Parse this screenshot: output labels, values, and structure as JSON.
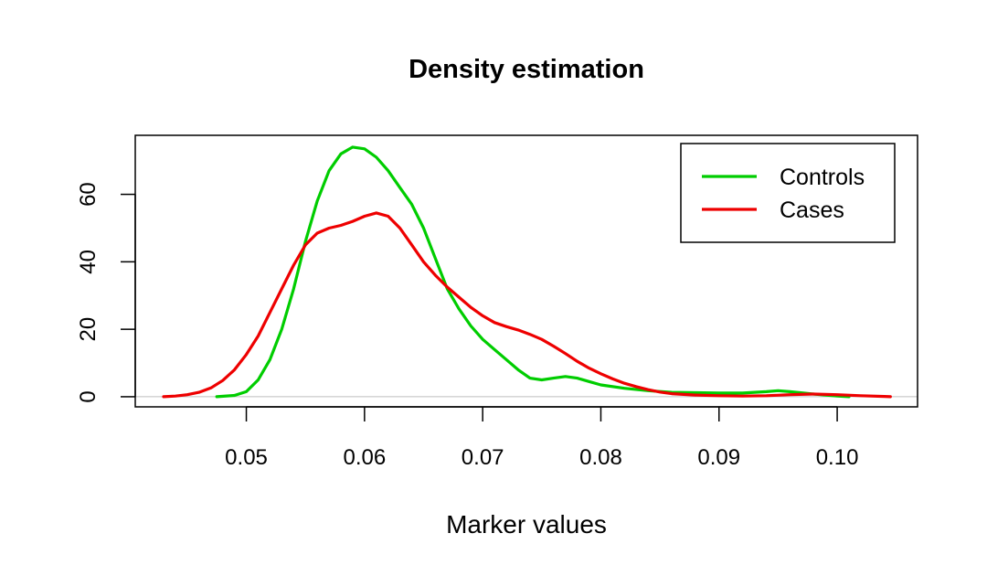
{
  "chart_data": {
    "type": "line",
    "title": "Density estimation",
    "xlabel": "Marker values",
    "ylabel": "",
    "xlim": [
      0.0406,
      0.1068
    ],
    "ylim": [
      -3,
      77.5
    ],
    "x_ticks": [
      0.05,
      0.06,
      0.07,
      0.08,
      0.09,
      0.1
    ],
    "x_tick_labels": [
      "0.05",
      "0.06",
      "0.07",
      "0.08",
      "0.09",
      "0.10"
    ],
    "y_ticks": [
      0,
      20,
      40,
      60
    ],
    "y_tick_labels": [
      "0",
      "20",
      "40",
      "60"
    ],
    "zero_line": true,
    "grid": false,
    "legend": {
      "position": "top-right"
    },
    "series": [
      {
        "name": "Controls",
        "color": "#00cd00",
        "points": [
          [
            0.0475,
            0
          ],
          [
            0.049,
            0.4
          ],
          [
            0.05,
            1.5
          ],
          [
            0.051,
            5
          ],
          [
            0.052,
            11
          ],
          [
            0.053,
            20
          ],
          [
            0.054,
            32
          ],
          [
            0.055,
            46
          ],
          [
            0.056,
            58
          ],
          [
            0.057,
            67
          ],
          [
            0.058,
            72
          ],
          [
            0.059,
            74
          ],
          [
            0.06,
            73.5
          ],
          [
            0.061,
            71
          ],
          [
            0.062,
            67
          ],
          [
            0.063,
            62
          ],
          [
            0.064,
            57
          ],
          [
            0.065,
            50
          ],
          [
            0.066,
            41
          ],
          [
            0.067,
            32
          ],
          [
            0.068,
            26
          ],
          [
            0.069,
            21
          ],
          [
            0.07,
            17
          ],
          [
            0.071,
            14
          ],
          [
            0.072,
            11
          ],
          [
            0.073,
            8
          ],
          [
            0.074,
            5.5
          ],
          [
            0.075,
            5
          ],
          [
            0.076,
            5.5
          ],
          [
            0.077,
            6
          ],
          [
            0.078,
            5.5
          ],
          [
            0.079,
            4.5
          ],
          [
            0.08,
            3.5
          ],
          [
            0.082,
            2.5
          ],
          [
            0.084,
            1.8
          ],
          [
            0.086,
            1.3
          ],
          [
            0.088,
            1.2
          ],
          [
            0.09,
            1.1
          ],
          [
            0.092,
            1.1
          ],
          [
            0.094,
            1.5
          ],
          [
            0.095,
            1.8
          ],
          [
            0.096,
            1.5
          ],
          [
            0.098,
            0.8
          ],
          [
            0.1,
            0.2
          ],
          [
            0.101,
            0
          ]
        ]
      },
      {
        "name": "Cases",
        "color": "#ee0000",
        "points": [
          [
            0.043,
            0
          ],
          [
            0.044,
            0.2
          ],
          [
            0.045,
            0.6
          ],
          [
            0.046,
            1.3
          ],
          [
            0.047,
            2.6
          ],
          [
            0.048,
            4.8
          ],
          [
            0.049,
            8
          ],
          [
            0.05,
            12.5
          ],
          [
            0.051,
            18
          ],
          [
            0.052,
            25
          ],
          [
            0.053,
            32
          ],
          [
            0.054,
            39
          ],
          [
            0.055,
            45
          ],
          [
            0.056,
            48.5
          ],
          [
            0.057,
            50
          ],
          [
            0.058,
            50.8
          ],
          [
            0.059,
            52
          ],
          [
            0.06,
            53.5
          ],
          [
            0.061,
            54.5
          ],
          [
            0.062,
            53.5
          ],
          [
            0.063,
            50
          ],
          [
            0.064,
            45
          ],
          [
            0.065,
            40
          ],
          [
            0.066,
            36
          ],
          [
            0.067,
            32.5
          ],
          [
            0.068,
            29.5
          ],
          [
            0.069,
            26.5
          ],
          [
            0.07,
            24
          ],
          [
            0.071,
            22
          ],
          [
            0.072,
            20.8
          ],
          [
            0.073,
            19.8
          ],
          [
            0.074,
            18.5
          ],
          [
            0.075,
            17
          ],
          [
            0.076,
            15
          ],
          [
            0.077,
            12.8
          ],
          [
            0.078,
            10.5
          ],
          [
            0.079,
            8.5
          ],
          [
            0.08,
            6.8
          ],
          [
            0.081,
            5.3
          ],
          [
            0.082,
            4
          ],
          [
            0.083,
            3
          ],
          [
            0.084,
            2.1
          ],
          [
            0.085,
            1.4
          ],
          [
            0.086,
            0.9
          ],
          [
            0.088,
            0.5
          ],
          [
            0.09,
            0.3
          ],
          [
            0.092,
            0.2
          ],
          [
            0.094,
            0.3
          ],
          [
            0.096,
            0.6
          ],
          [
            0.098,
            0.8
          ],
          [
            0.1,
            0.6
          ],
          [
            0.102,
            0.3
          ],
          [
            0.104,
            0.1
          ],
          [
            0.1045,
            0
          ]
        ]
      }
    ]
  }
}
